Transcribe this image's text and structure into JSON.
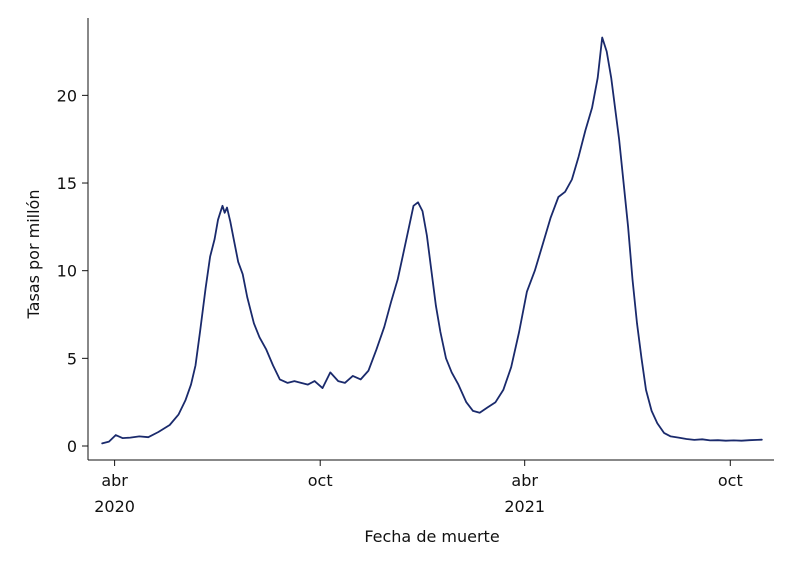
{
  "chart_data": {
    "type": "line",
    "title": "",
    "xlabel": "Fecha de muerte",
    "ylabel": "Tasas por millón",
    "ylim": [
      0,
      23.5
    ],
    "yticks": [
      0,
      5,
      10,
      15,
      20
    ],
    "grid": false,
    "legend": "none",
    "line_color": "#1a2a6c",
    "x_range": [
      "2020-03-19",
      "2021-10-31"
    ],
    "x_ticks": [
      {
        "date": "2020-04-01",
        "label": "abr",
        "year_label": "2020"
      },
      {
        "date": "2020-10-01",
        "label": "oct",
        "year_label": ""
      },
      {
        "date": "2021-04-01",
        "label": "abr",
        "year_label": "2021"
      },
      {
        "date": "2021-10-01",
        "label": "oct",
        "year_label": ""
      }
    ],
    "series": [
      {
        "x": [
          "2020-03-21",
          "2020-03-27",
          "2020-04-02",
          "2020-04-08",
          "2020-04-15",
          "2020-04-23",
          "2020-05-01",
          "2020-05-10",
          "2020-05-20",
          "2020-05-28",
          "2020-06-03",
          "2020-06-08",
          "2020-06-12",
          "2020-06-16",
          "2020-06-21",
          "2020-06-25",
          "2020-06-29",
          "2020-07-02",
          "2020-07-04",
          "2020-07-06",
          "2020-07-08",
          "2020-07-10",
          "2020-07-13",
          "2020-07-16",
          "2020-07-20",
          "2020-07-24",
          "2020-07-28",
          "2020-08-03",
          "2020-08-08",
          "2020-08-14",
          "2020-08-20",
          "2020-08-26",
          "2020-09-02",
          "2020-09-08",
          "2020-09-14",
          "2020-09-20",
          "2020-09-26",
          "2020-10-03",
          "2020-10-10",
          "2020-10-17",
          "2020-10-23",
          "2020-10-30",
          "2020-11-06",
          "2020-11-13",
          "2020-11-20",
          "2020-11-27",
          "2020-12-03",
          "2020-12-09",
          "2020-12-14",
          "2020-12-19",
          "2020-12-23",
          "2020-12-27",
          "2020-12-31",
          "2021-01-04",
          "2021-01-08",
          "2021-01-12",
          "2021-01-16",
          "2021-01-21",
          "2021-01-26",
          "2021-02-01",
          "2021-02-08",
          "2021-02-14",
          "2021-02-20",
          "2021-02-27",
          "2021-03-06",
          "2021-03-13",
          "2021-03-20",
          "2021-03-27",
          "2021-04-03",
          "2021-04-10",
          "2021-04-17",
          "2021-04-24",
          "2021-05-01",
          "2021-05-07",
          "2021-05-13",
          "2021-05-19",
          "2021-05-25",
          "2021-05-31",
          "2021-06-05",
          "2021-06-09",
          "2021-06-13",
          "2021-06-17",
          "2021-06-21",
          "2021-06-24",
          "2021-06-28",
          "2021-07-02",
          "2021-07-06",
          "2021-07-10",
          "2021-07-14",
          "2021-07-18",
          "2021-07-23",
          "2021-07-28",
          "2021-08-03",
          "2021-08-09",
          "2021-08-16",
          "2021-08-23",
          "2021-08-30",
          "2021-09-06",
          "2021-09-13",
          "2021-09-20",
          "2021-09-27",
          "2021-10-04",
          "2021-10-11",
          "2021-10-18",
          "2021-10-25",
          "2021-10-29"
        ],
        "y": [
          0.15,
          0.25,
          0.62,
          0.45,
          0.48,
          0.55,
          0.5,
          0.8,
          1.2,
          1.8,
          2.6,
          3.5,
          4.6,
          6.5,
          9.0,
          10.8,
          11.8,
          12.9,
          13.3,
          13.7,
          13.3,
          13.6,
          12.8,
          11.8,
          10.5,
          9.8,
          8.5,
          7.0,
          6.2,
          5.5,
          4.6,
          3.8,
          3.6,
          3.7,
          3.6,
          3.5,
          3.7,
          3.3,
          4.2,
          3.7,
          3.6,
          4.0,
          3.8,
          4.3,
          5.5,
          6.8,
          8.2,
          9.5,
          11.0,
          12.5,
          13.7,
          13.9,
          13.4,
          12.0,
          10.0,
          8.0,
          6.5,
          5.0,
          4.2,
          3.5,
          2.5,
          2.0,
          1.9,
          2.2,
          2.5,
          3.2,
          4.5,
          6.5,
          8.8,
          10.0,
          11.5,
          13.0,
          14.2,
          14.5,
          15.2,
          16.5,
          18.0,
          19.3,
          21.0,
          23.3,
          22.5,
          21.0,
          19.0,
          17.5,
          15.0,
          12.5,
          9.5,
          7.0,
          5.0,
          3.2,
          2.0,
          1.3,
          0.75,
          0.55,
          0.48,
          0.4,
          0.35,
          0.38,
          0.32,
          0.33,
          0.3,
          0.32,
          0.3,
          0.33,
          0.35,
          0.36
        ]
      }
    ]
  }
}
